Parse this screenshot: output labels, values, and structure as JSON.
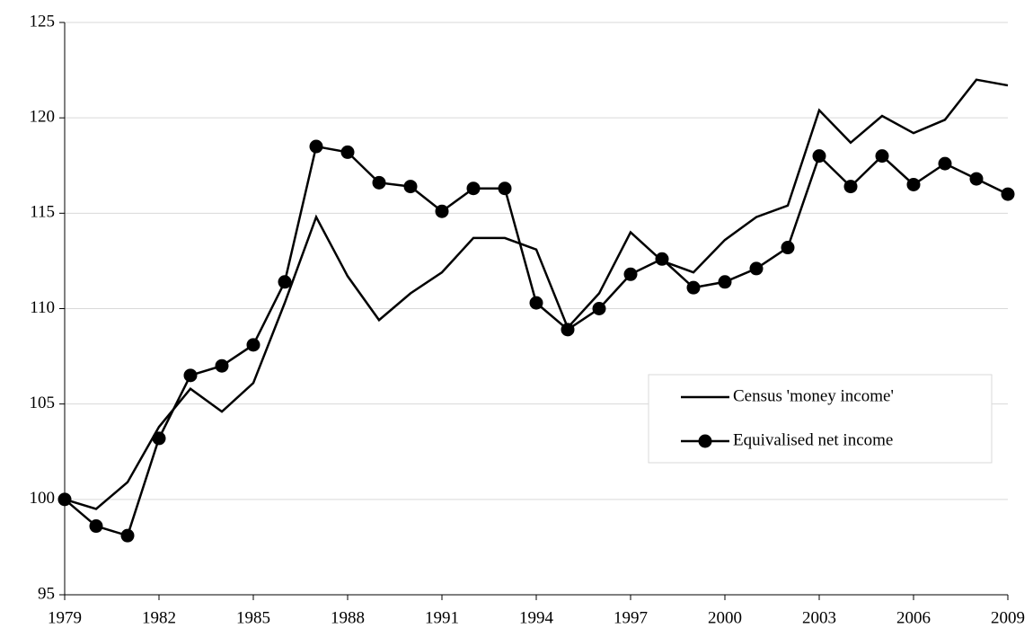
{
  "chart_data": {
    "type": "line",
    "x": [
      1979,
      1980,
      1981,
      1982,
      1983,
      1984,
      1985,
      1986,
      1987,
      1988,
      1989,
      1990,
      1991,
      1992,
      1993,
      1994,
      1995,
      1996,
      1997,
      1998,
      1999,
      2000,
      2001,
      2002,
      2003,
      2004,
      2005,
      2006,
      2007,
      2008,
      2009
    ],
    "series": [
      {
        "name": "Census 'money income'",
        "color": "#000000",
        "marker": "none",
        "values": [
          100,
          99.5,
          100.9,
          103.8,
          105.8,
          104.6,
          106.1,
          110.3,
          114.8,
          111.7,
          109.4,
          110.8,
          111.9,
          113.7,
          113.7,
          113.1,
          109.0,
          110.8,
          114.0,
          112.5,
          111.9,
          113.6,
          114.8,
          115.4,
          120.4,
          118.7,
          120.1,
          119.2,
          119.9,
          122.0,
          121.7
        ]
      },
      {
        "name": "Equivalised net income",
        "color": "#000000",
        "marker": "circle",
        "values": [
          100,
          98.6,
          98.1,
          103.2,
          106.5,
          107.0,
          108.1,
          111.4,
          118.5,
          118.2,
          116.6,
          116.4,
          115.1,
          116.3,
          116.3,
          110.3,
          108.9,
          110.0,
          111.8,
          112.6,
          111.1,
          111.4,
          112.1,
          113.2,
          118.0,
          116.4,
          118.0,
          116.5,
          117.6,
          116.8,
          116.0
        ]
      }
    ],
    "xlim": [
      1979,
      2009
    ],
    "xticks": [
      1979,
      1982,
      1985,
      1988,
      1991,
      1994,
      1997,
      2000,
      2003,
      2006,
      2009
    ],
    "ylim": [
      95,
      125
    ],
    "yticks": [
      95,
      100,
      105,
      110,
      115,
      120,
      125
    ],
    "grid": true,
    "legend": "lower-right"
  }
}
